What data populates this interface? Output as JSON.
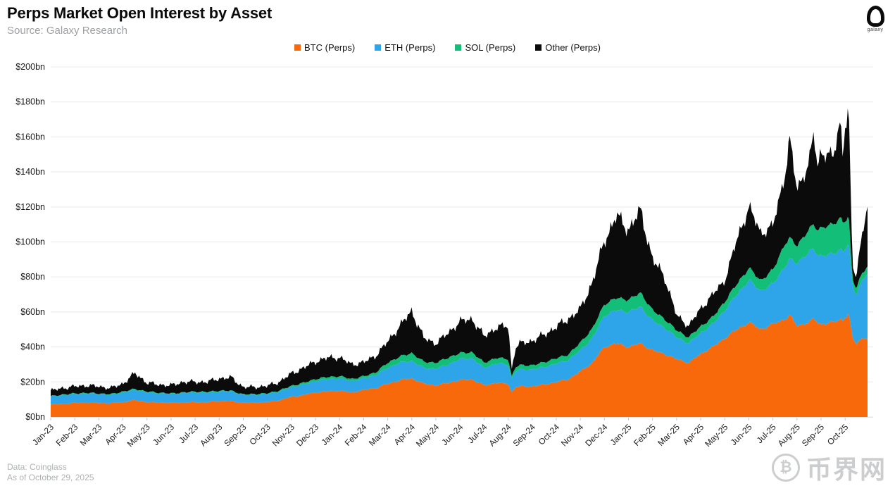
{
  "header": {
    "title": "Perps Market Open Interest by Asset",
    "subtitle": "Source: Galaxy Research",
    "logo_text": "galaxy"
  },
  "footer": {
    "line1": "Data: Coinglass",
    "line2": "As of October 29, 2025"
  },
  "watermark": {
    "symbol": "₿",
    "text": "币界网"
  },
  "chart_data": {
    "type": "area",
    "stacked": true,
    "title": "Perps Market Open Interest by Asset",
    "unit": "$bn",
    "ylim": [
      0,
      200
    ],
    "ytick_step": 20,
    "ytick_labels": [
      "$0bn",
      "$20bn",
      "$40bn",
      "$60bn",
      "$80bn",
      "$100bn",
      "$120bn",
      "$140bn",
      "$160bn",
      "$180bn",
      "$200bn"
    ],
    "grid": "horizontal",
    "legend_position": "top",
    "categories": [
      "Jan-23",
      "Feb-23",
      "Mar-23",
      "Apr-23",
      "May-23",
      "Jun-23",
      "Jul-23",
      "Aug-23",
      "Sep-23",
      "Oct-23",
      "Nov-23",
      "Dec-23",
      "Jan-24",
      "Feb-24",
      "Mar-24",
      "Apr-24",
      "May-24",
      "Jun-24",
      "Jul-24",
      "Aug-24",
      "Sep-24",
      "Oct-24",
      "Nov-24",
      "Dec-24",
      "Jan-25",
      "Feb-25",
      "Mar-25",
      "Apr-25",
      "May-25",
      "Jun-25",
      "Jul-25",
      "Aug-25",
      "Sep-25",
      "Oct-25"
    ],
    "t_months_since_jan23": [
      0,
      0.5,
      1,
      1.5,
      2,
      2.5,
      3,
      3.5,
      4,
      4.5,
      5,
      5.5,
      6,
      6.5,
      7,
      7.5,
      8,
      8.5,
      9,
      9.5,
      10,
      10.5,
      11,
      11.5,
      12,
      12.5,
      13,
      13.5,
      14,
      14.5,
      15,
      15.5,
      16,
      16.5,
      17,
      17.5,
      18,
      18.5,
      19,
      19.15,
      19.3,
      19.5,
      20,
      20.5,
      21,
      21.5,
      22,
      22.5,
      23,
      23.5,
      24,
      24.5,
      25,
      25.5,
      26,
      26.5,
      27,
      27.5,
      28,
      28.5,
      29,
      29.5,
      30,
      30.5,
      30.7,
      31,
      31.5,
      31.7,
      31.85,
      32,
      32.5,
      32.8,
      32.9,
      33,
      33.15,
      33.3,
      33.45,
      33.6,
      33.77,
      33.93
    ],
    "series": [
      {
        "name": "BTC (Perps)",
        "color": "#F7690A",
        "jitter_base": 0.35,
        "jitter_scale": 0.02,
        "values": [
          7,
          7.5,
          8,
          8.2,
          8,
          7.8,
          8.5,
          9.5,
          8.5,
          8.3,
          8,
          8.3,
          8.5,
          8.5,
          9,
          9,
          8,
          8.2,
          8.5,
          9.5,
          11.5,
          12.5,
          14,
          14.5,
          15,
          14,
          15.5,
          16.5,
          19,
          21,
          22,
          19,
          18,
          19.5,
          21,
          21.5,
          18,
          19.5,
          19,
          14,
          17,
          17.5,
          17.5,
          18.5,
          20,
          21.5,
          26,
          31,
          40,
          42,
          40,
          42,
          38,
          36,
          33,
          31,
          36,
          40,
          45,
          50,
          54,
          50,
          53,
          56,
          58,
          52,
          54,
          56,
          54,
          53,
          54,
          56,
          55,
          57,
          59,
          45,
          42,
          44,
          45,
          45
        ]
      },
      {
        "name": "ETH (Perps)",
        "color": "#2EA5E8",
        "jitter_base": 0.3,
        "jitter_scale": 0.02,
        "values": [
          4.5,
          5,
          5,
          5.2,
          5,
          4.8,
          5.5,
          6,
          5.5,
          5.2,
          5,
          5.2,
          5.5,
          5.3,
          5.5,
          5.5,
          4.5,
          4.5,
          4.5,
          5,
          5.5,
          6,
          6.5,
          7,
          7,
          6.5,
          6.5,
          7.5,
          9,
          10,
          10,
          9,
          9.5,
          10.5,
          12,
          12,
          10,
          11,
          11,
          7.5,
          9,
          9.5,
          9.5,
          10,
          10.5,
          11,
          12,
          14,
          18,
          19,
          20,
          21,
          17,
          15,
          12.5,
          11,
          12,
          13,
          16,
          20,
          24,
          22,
          23,
          30,
          32,
          36,
          40,
          40,
          39,
          39,
          39,
          40,
          39,
          39,
          40,
          30,
          28,
          31,
          34,
          37
        ]
      },
      {
        "name": "SOL (Perps)",
        "color": "#12BE78",
        "jitter_base": 0.12,
        "jitter_scale": 0.015,
        "values": [
          0.3,
          0.3,
          0.4,
          0.4,
          0.4,
          0.4,
          0.5,
          0.5,
          0.5,
          0.4,
          0.4,
          0.5,
          0.5,
          0.5,
          0.5,
          0.5,
          0.4,
          0.4,
          0.5,
          0.6,
          0.8,
          1,
          1.2,
          1.3,
          1.3,
          1.2,
          1.2,
          1.5,
          3,
          3.5,
          4.5,
          3.5,
          3.5,
          3.8,
          3.5,
          3.5,
          3,
          3.2,
          3.2,
          1.5,
          2.5,
          2.6,
          2.5,
          2.8,
          3,
          3.2,
          4.5,
          5.5,
          6.5,
          7,
          7,
          8,
          6,
          5,
          4,
          3.5,
          3.8,
          4,
          5,
          6,
          7,
          6,
          8,
          13,
          12,
          10,
          13,
          14,
          14,
          16,
          17,
          18,
          17,
          16,
          16,
          4,
          4,
          4,
          4,
          4.5
        ]
      },
      {
        "name": "Other (Perps)",
        "color": "#0B0B0B",
        "jitter_base": 0.9,
        "jitter_scale": 0.1,
        "values": [
          3.2,
          3.7,
          4,
          4.2,
          4,
          3.5,
          4.5,
          9,
          5,
          4.6,
          4.6,
          6,
          5.5,
          5.7,
          7,
          7.5,
          4.1,
          4,
          4.2,
          5,
          7,
          8.5,
          10,
          11,
          10.7,
          8.3,
          8,
          9.5,
          12,
          17.5,
          24,
          13.5,
          11,
          14,
          18,
          19,
          15,
          17.3,
          19,
          4,
          11,
          12.4,
          14,
          15.7,
          18,
          20.3,
          19,
          26.5,
          36,
          47,
          40,
          47,
          29,
          24,
          8.5,
          6.5,
          10,
          13,
          12,
          25,
          35,
          27,
          25,
          40,
          56,
          32,
          38,
          52,
          36,
          44,
          38,
          56,
          39,
          55,
          59,
          8,
          6,
          16,
          27,
          34.5
        ]
      }
    ]
  }
}
